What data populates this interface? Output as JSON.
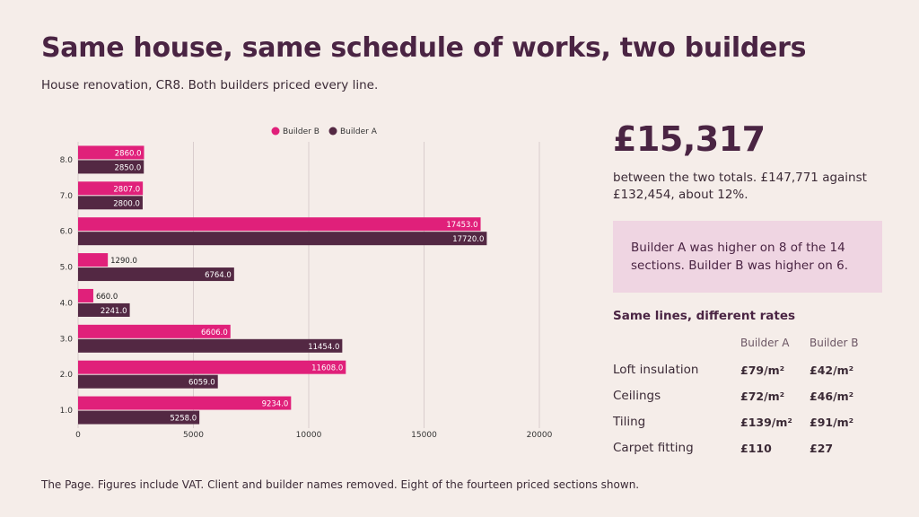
{
  "header": {
    "title": "Same house, same schedule of works, two builders",
    "subtitle": "House renovation, CR8. Both builders priced every line."
  },
  "chart_data": {
    "type": "bar",
    "orientation": "horizontal",
    "categories": [
      "1.0",
      "2.0",
      "3.0",
      "4.0",
      "5.0",
      "6.0",
      "7.0",
      "8.0"
    ],
    "series": [
      {
        "name": "Builder B",
        "color": "#e0207a",
        "values": [
          9234.0,
          11608.0,
          6606.0,
          660.0,
          1290.0,
          17453.0,
          2807.0,
          2860.0
        ]
      },
      {
        "name": "Builder A",
        "color": "#532843",
        "values": [
          5258.0,
          6059.0,
          11454.0,
          2241.0,
          6764.0,
          17720.0,
          2800.0,
          2850.0
        ]
      }
    ],
    "x_ticks": [
      "0",
      "5000",
      "10000",
      "15000",
      "20000"
    ],
    "xlim": [
      0,
      20000
    ],
    "grid": "vertical",
    "legend": "top-center"
  },
  "summary": {
    "big_number": "£15,317",
    "caption": "between the two totals. £147,771 against £132,454, about 12%.",
    "callout": "Builder A was higher on 8 of the 14 sections. Builder B was higher on 6."
  },
  "rates": {
    "title": "Same lines, different rates",
    "col_a": "Builder A",
    "col_b": "Builder B",
    "rows": [
      {
        "label": "Loft insulation",
        "a": "£79/m²",
        "b": "£42/m²"
      },
      {
        "label": "Ceilings",
        "a": "£72/m²",
        "b": "£46/m²"
      },
      {
        "label": "Tiling",
        "a": "£139/m²",
        "b": "£91/m²"
      },
      {
        "label": "Carpet fitting",
        "a": "£110",
        "b": "£27"
      }
    ]
  },
  "footer": {
    "note": "The Page. Figures include VAT. Client and builder names removed. Eight of the fourteen priced sections shown."
  }
}
